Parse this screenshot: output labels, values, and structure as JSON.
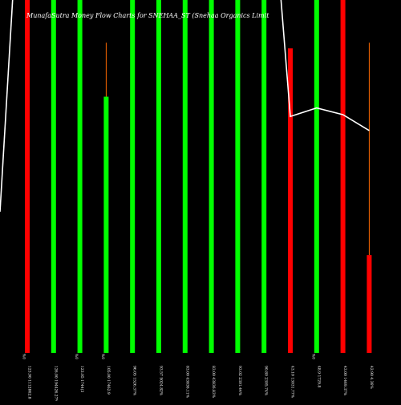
{
  "chart_data": {
    "type": "bar",
    "title": "MunafaSutra  Money Flow  Charts for SNEHAA_ST                    (Snehaa  Organics Limit",
    "background": "#000000",
    "colors": {
      "up": "#00ff00",
      "down": "#ff0000",
      "line": "#ffffff",
      "wick": "#ff6a00"
    },
    "ylim": [
      0,
      100
    ],
    "bars": [
      {
        "category": "123.90 1112862.8",
        "value": 100,
        "color": "down",
        "wick_top": null,
        "pct_label": "0%"
      },
      {
        "category": "126.00 194426.27%",
        "value": 100,
        "color": "up",
        "wick_top": null,
        "pct_label": ""
      },
      {
        "category": "123.05 1744(3",
        "value": 100,
        "color": "up",
        "wick_top": null,
        "pct_label": "0%"
      },
      {
        "category": "105.00 17462.9",
        "value": 72.6,
        "color": "up",
        "wick_top": 87.9,
        "pct_label": "0%"
      },
      {
        "category": "96.05 1526.37%",
        "value": 100,
        "color": "up",
        "wick_top": null,
        "pct_label": ""
      },
      {
        "category": "93.57 5024.82%",
        "value": 100,
        "color": "up",
        "wick_top": null,
        "pct_label": ""
      },
      {
        "category": "83.00 43836.11%",
        "value": 100,
        "color": "up",
        "wick_top": null,
        "pct_label": ""
      },
      {
        "category": "83.00 43836.83%",
        "value": 100,
        "color": "up",
        "wick_top": null,
        "pct_label": ""
      },
      {
        "category": "93.02 2301.44%",
        "value": 100,
        "color": "up",
        "wick_top": null,
        "pct_label": ""
      },
      {
        "category": "90.80 2305.74%",
        "value": 100,
        "color": "up",
        "wick_top": null,
        "pct_label": ""
      },
      {
        "category": "43.10 13031.77%",
        "value": 86.3,
        "color": "down",
        "wick_top": null,
        "pct_label": ""
      },
      {
        "category": "48.9 1729.8",
        "value": 100,
        "color": "up",
        "wick_top": null,
        "pct_label": "0%"
      },
      {
        "category": "43.00 1469.37%",
        "value": 100,
        "color": "down",
        "wick_top": null,
        "pct_label": ""
      },
      {
        "category": "42.90 4.36%",
        "value": 27.7,
        "color": "down",
        "wick_top": 87.9,
        "pct_label": ""
      }
    ],
    "price_line": [
      {
        "bar_index": 0,
        "value": 100
      },
      {
        "bar_index": 10,
        "value": 67
      },
      {
        "bar_index": 11,
        "value": 69.4
      },
      {
        "bar_index": 12,
        "value": 67.5
      },
      {
        "bar_index": 13,
        "value": 63
      }
    ],
    "price_line_entry": 100
  }
}
